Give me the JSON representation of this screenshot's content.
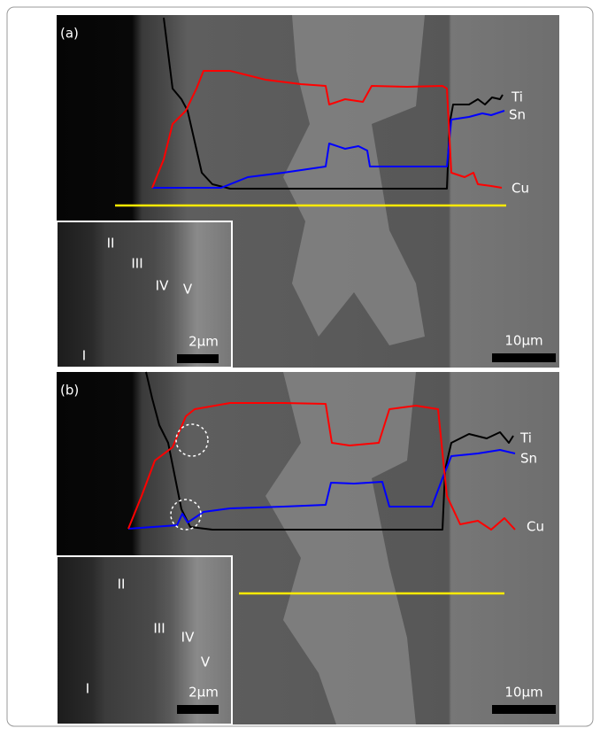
{
  "panels": [
    {
      "label": "(a)",
      "traces": [
        "Ti",
        "Sn",
        "Cu"
      ],
      "scale_bar": "10µm",
      "inset": {
        "scale_bar": "2µm",
        "zones": [
          "I",
          "II",
          "III",
          "IV",
          "V"
        ]
      }
    },
    {
      "label": "(b)",
      "traces": [
        "Ti",
        "Sn",
        "Cu"
      ],
      "scale_bar": "10µm",
      "inset": {
        "scale_bar": "2µm",
        "zones": [
          "I",
          "II",
          "III",
          "IV",
          "V"
        ]
      }
    }
  ]
}
